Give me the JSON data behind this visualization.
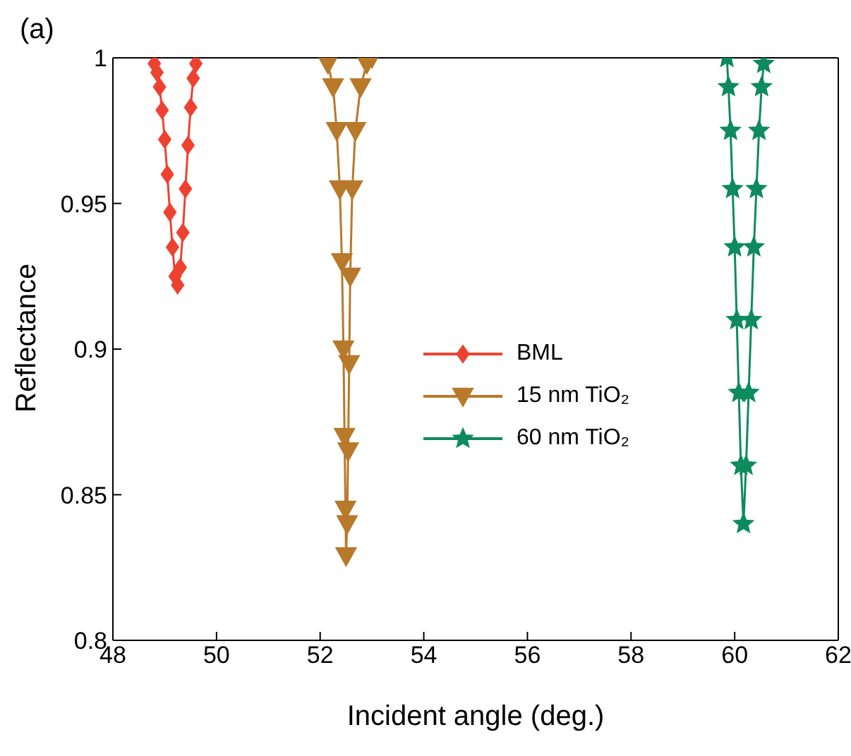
{
  "chart_data": {
    "type": "line",
    "xlabel": "Incident angle (deg.)",
    "ylabel": "Reflectance",
    "annotations": [
      "(a)"
    ],
    "xlim": [
      48,
      62
    ],
    "xticks": [
      48,
      50,
      52,
      54,
      56,
      58,
      60,
      62
    ],
    "ylim": [
      0.8,
      1
    ],
    "yticks": [
      {
        "value": 0.8,
        "label": "0.8"
      },
      {
        "value": 0.85,
        "label": "0.85"
      },
      {
        "value": 0.9,
        "label": "0.9"
      },
      {
        "value": 0.95,
        "label": "0.95"
      },
      {
        "value": 1,
        "label": "1"
      }
    ],
    "grid": false,
    "legend": "center",
    "line_style": "solid",
    "series": [
      {
        "name": "BML",
        "color": "#ee4231",
        "marker": "diamond",
        "x": [
          48.8,
          48.85,
          48.9,
          48.95,
          49.0,
          49.05,
          49.1,
          49.15,
          49.2,
          49.25,
          49.3,
          49.35,
          49.4,
          49.45,
          49.5,
          49.55,
          49.6
        ],
        "values": [
          0.998,
          0.995,
          0.99,
          0.982,
          0.972,
          0.96,
          0.947,
          0.935,
          0.925,
          0.922,
          0.928,
          0.94,
          0.955,
          0.97,
          0.983,
          0.993,
          0.998
        ]
      },
      {
        "name": "15 nm TiO₂",
        "color": "#b8792a",
        "marker": "triangle",
        "x": [
          52.15,
          52.25,
          52.32,
          52.38,
          52.42,
          52.45,
          52.47,
          52.49,
          52.5,
          52.52,
          52.54,
          52.56,
          52.58,
          52.62,
          52.68,
          52.78,
          52.9,
          53.0
        ],
        "values": [
          0.998,
          0.99,
          0.975,
          0.955,
          0.93,
          0.9,
          0.87,
          0.845,
          0.829,
          0.84,
          0.865,
          0.895,
          0.925,
          0.955,
          0.975,
          0.99,
          0.998,
          1.0
        ]
      },
      {
        "name": "60 nm TiO₂",
        "color": "#0e8a5f",
        "marker": "star",
        "x": [
          59.85,
          59.88,
          59.92,
          59.96,
          60.0,
          60.04,
          60.08,
          60.12,
          60.17,
          60.22,
          60.27,
          60.32,
          60.37,
          60.42,
          60.47,
          60.52,
          60.56
        ],
        "values": [
          1.0,
          0.99,
          0.975,
          0.955,
          0.935,
          0.91,
          0.885,
          0.86,
          0.84,
          0.86,
          0.885,
          0.91,
          0.935,
          0.955,
          0.975,
          0.99,
          0.998
        ]
      }
    ]
  }
}
